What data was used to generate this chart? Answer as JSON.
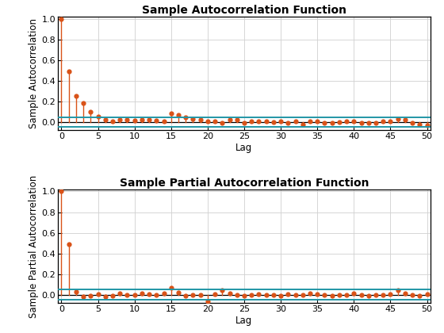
{
  "acf_title": "Sample Autocorrelation Function",
  "pacf_title": "Sample Partial Autocorrelation Function",
  "xlabel": "Lag",
  "acf_ylabel": "Sample Autocorrelation",
  "pacf_ylabel": "Sample Partial Autocorrelation",
  "n_lags": 50,
  "confidence_bound": 0.049,
  "stem_color": "#D95319",
  "baseline_color": "black",
  "conf_line_color": "#2196A6",
  "background_color": "white",
  "grid_color": "#D0D0D0",
  "marker_size": 4.5,
  "conf_linewidth": 1.4,
  "stem_linewidth": 1.0,
  "acf_ylim": [
    -0.08,
    1.02
  ],
  "pacf_ylim": [
    -0.08,
    1.02
  ],
  "title_fontsize": 10,
  "label_fontsize": 8.5,
  "tick_fontsize": 8,
  "acf_values": [
    1.0,
    0.49,
    0.25,
    0.18,
    0.1,
    0.05,
    0.02,
    0.01,
    0.025,
    0.02,
    0.015,
    0.02,
    0.025,
    0.015,
    0.01,
    0.082,
    0.065,
    0.045,
    0.03,
    0.02,
    0.01,
    0.005,
    -0.005,
    0.025,
    0.022,
    -0.01,
    0.005,
    0.01,
    0.005,
    0.0,
    0.005,
    -0.01,
    0.005,
    -0.02,
    0.005,
    0.005,
    -0.005,
    -0.01,
    0.0,
    0.005,
    0.005,
    -0.005,
    -0.01,
    -0.005,
    0.005,
    0.005,
    0.028,
    0.025,
    -0.01,
    -0.02,
    -0.035
  ],
  "pacf_values": [
    1.0,
    0.49,
    0.03,
    -0.02,
    -0.01,
    0.005,
    -0.015,
    -0.01,
    0.01,
    -0.005,
    0.0,
    0.01,
    0.005,
    0.0,
    0.01,
    0.068,
    0.02,
    -0.01,
    -0.005,
    0.0,
    -0.06,
    0.005,
    0.048,
    0.01,
    -0.005,
    -0.01,
    0.0,
    0.005,
    0.0,
    -0.005,
    -0.01,
    0.005,
    -0.005,
    -0.005,
    0.01,
    0.005,
    -0.005,
    -0.01,
    0.0,
    -0.005,
    0.01,
    -0.005,
    -0.01,
    -0.005,
    0.0,
    0.005,
    0.048,
    0.01,
    -0.005,
    -0.01,
    0.005
  ]
}
